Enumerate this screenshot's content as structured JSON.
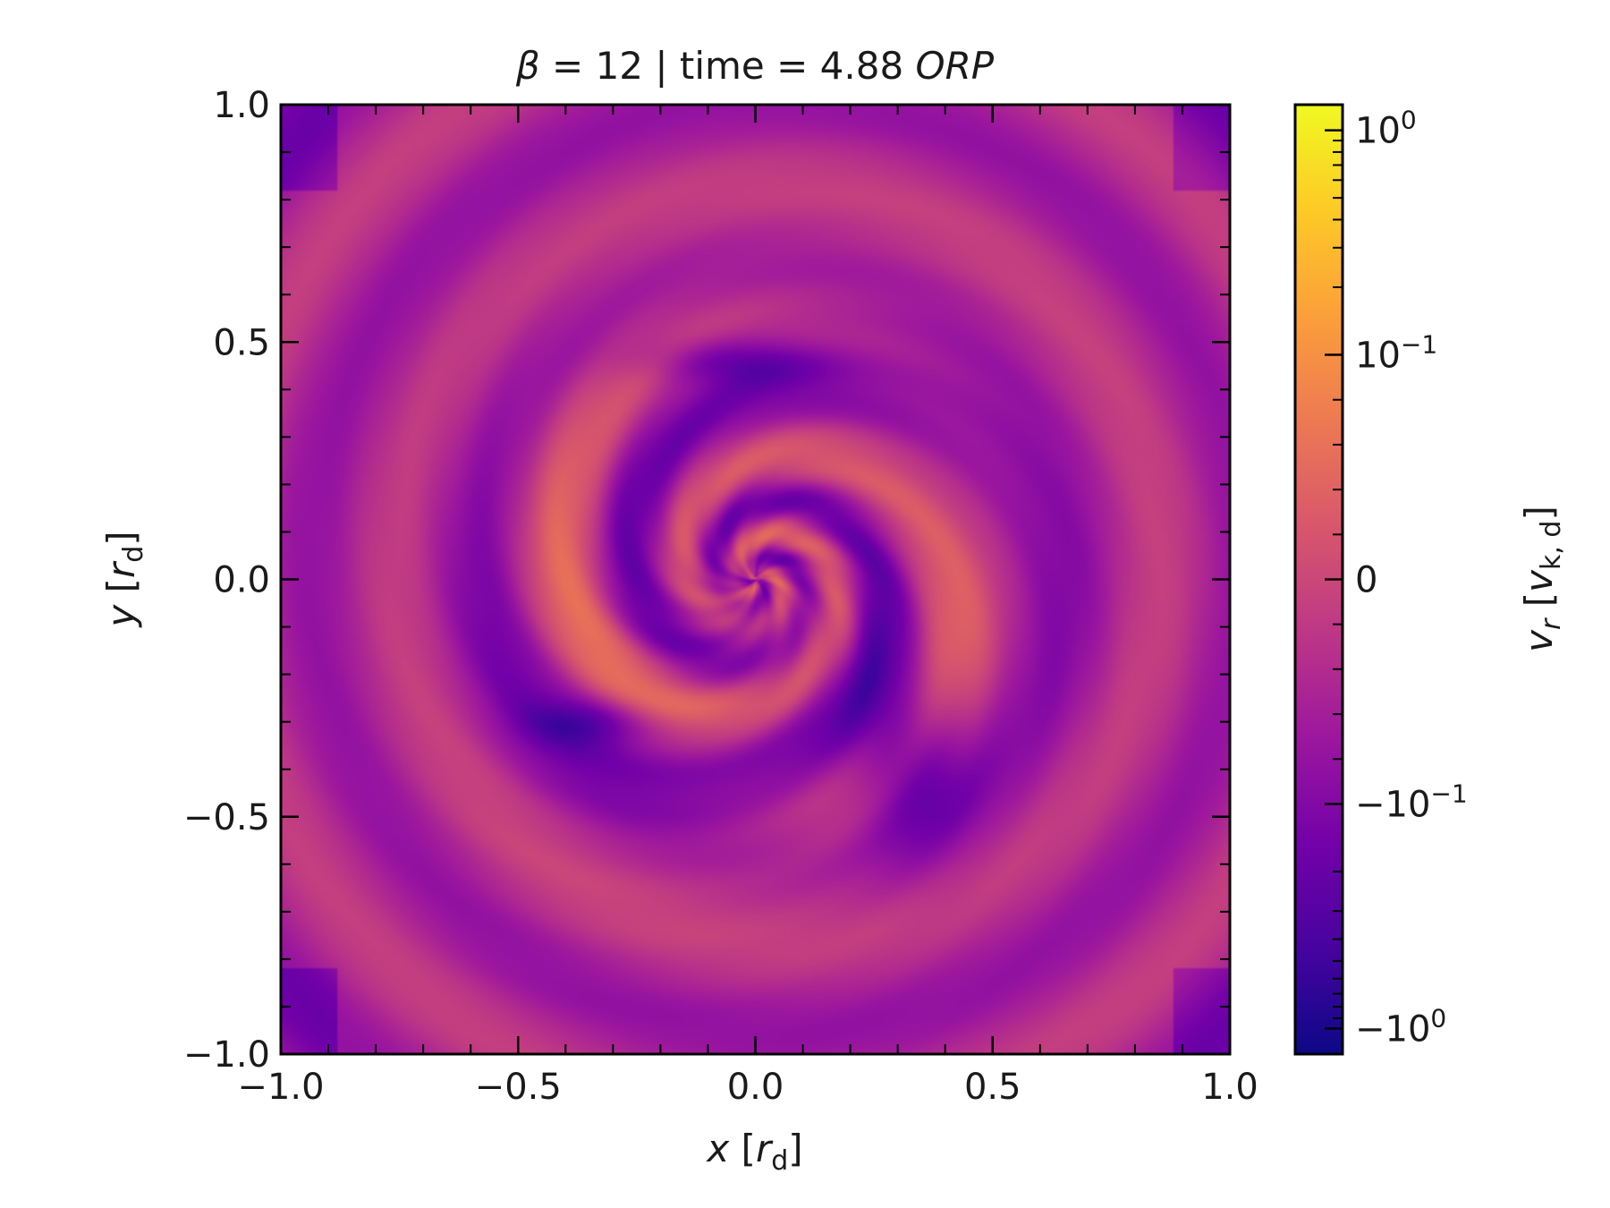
{
  "chart_data": {
    "type": "heatmap",
    "title": {
      "greek": "β",
      "rest": " = 12 | time = 4.88 ",
      "italic": "ORP"
    },
    "xlabel": {
      "var": "x",
      "pre": " [",
      "sym": "r",
      "sub": "d",
      "post": "]"
    },
    "ylabel": {
      "var": "y",
      "pre": " [",
      "sym": "r",
      "sub": "d",
      "post": "]"
    },
    "xlim": [
      -1.0,
      1.0
    ],
    "ylim": [
      -1.0,
      1.0
    ],
    "xticks": [
      "−1.0",
      "−0.5",
      "0.0",
      "0.5",
      "1.0"
    ],
    "yticks": [
      "−1.0",
      "−0.5",
      "0.0",
      "0.5",
      "1.0"
    ],
    "grid": false,
    "colormap": "plasma",
    "colorbar": {
      "label": {
        "var": "v",
        "varsub": "r",
        "pre": " [",
        "sym": "v",
        "sub": "k, d",
        "post": "]"
      },
      "scale": "symlog",
      "ticks": [
        {
          "value": 1.0,
          "base": "10",
          "exp": "0",
          "neg": false
        },
        {
          "value": 0.1,
          "base": "10",
          "exp": "−1",
          "neg": false
        },
        {
          "value": 0,
          "base": "0",
          "exp": "",
          "neg": false
        },
        {
          "value": -0.1,
          "base": "10",
          "exp": "−1",
          "neg": true
        },
        {
          "value": -1.0,
          "base": "10",
          "exp": "0",
          "neg": true
        }
      ],
      "range": [
        -1.3,
        1.3
      ]
    },
    "field": {
      "description_values": "radial velocity field v_r in units of v_k,d",
      "inner_spiral_arms": 3,
      "outer_rings_center_x": 0.05,
      "outer_rings_center_y": 0.05
    },
    "colors": {
      "low": "#0d0887",
      "mid": "#cc4778",
      "high": "#f0f921",
      "plasma_stops": [
        "#0d0887",
        "#47039f",
        "#7301a8",
        "#9c179e",
        "#bd3786",
        "#d8576b",
        "#ed7953",
        "#fb9f3a",
        "#fdca26",
        "#f0f921"
      ]
    }
  }
}
